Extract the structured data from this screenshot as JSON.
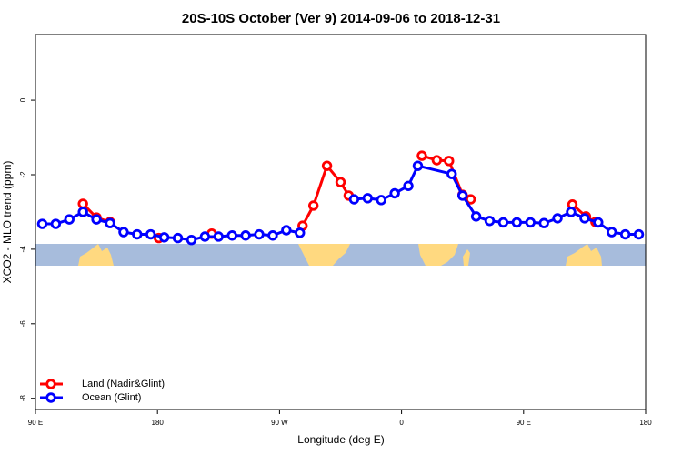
{
  "chart_data": {
    "type": "line",
    "title": "20S-10S October (Ver 9)   2014-09-06 to 2018-12-31",
    "xlabel": "Longitude (deg E)",
    "ylabel": "XCO2 - MLO trend (ppm)",
    "xlim": [
      90,
      540
    ],
    "ylim": [
      -8.3,
      1.76
    ],
    "xticks": [
      {
        "value": 90,
        "label": "90 E"
      },
      180,
      {
        "value": 270,
        "label": "90 W"
      },
      {
        "value": 360,
        "label": "0"
      },
      {
        "value": 450,
        "label": "90 E"
      },
      {
        "value": 540,
        "label": "180"
      }
    ],
    "yticks": [
      0,
      -2,
      -4,
      -6,
      -8
    ],
    "legend": "bottom-left",
    "series": [
      {
        "name": "Land (Nadir&Glint)",
        "color": "#ff0000",
        "x": [
          125,
          135,
          145,
          160,
          181,
          200,
          220,
          250,
          287,
          295,
          305,
          315,
          321,
          350,
          375,
          386,
          395,
          405,
          411,
          450,
          486,
          496,
          503
        ],
        "values": [
          -2.78,
          -3.15,
          -3.27,
          null,
          -3.7,
          null,
          -3.58,
          null,
          -3.37,
          -2.83,
          -1.76,
          -2.2,
          -2.56,
          null,
          -1.49,
          -1.61,
          -1.63,
          -2.54,
          -2.66,
          null,
          -2.8,
          -3.12,
          -3.27
        ]
      },
      {
        "name": "Ocean (Glint)",
        "color": "#0000ff",
        "x": [
          95,
          105,
          115,
          125,
          135,
          145,
          155,
          165,
          175,
          185,
          195,
          205,
          215,
          225,
          235,
          245,
          255,
          265,
          275,
          285,
          305,
          325,
          335,
          345,
          355,
          365,
          372,
          397,
          405,
          415,
          425,
          435,
          445,
          455,
          465,
          475,
          485,
          495,
          505,
          515,
          525,
          535
        ],
        "values": [
          -3.32,
          -3.32,
          -3.2,
          -3.0,
          -3.2,
          -3.3,
          -3.54,
          -3.6,
          -3.6,
          -3.68,
          -3.7,
          -3.75,
          -3.66,
          -3.66,
          -3.63,
          -3.63,
          -3.6,
          -3.63,
          -3.49,
          -3.56,
          null,
          -2.66,
          -2.63,
          -2.68,
          -2.5,
          -2.3,
          -1.76,
          -1.98,
          -2.56,
          -3.12,
          -3.24,
          -3.28,
          -3.28,
          -3.28,
          -3.3,
          -3.17,
          -3.0,
          -3.17,
          -3.28,
          -3.54,
          -3.6,
          -3.6
        ]
      }
    ]
  }
}
